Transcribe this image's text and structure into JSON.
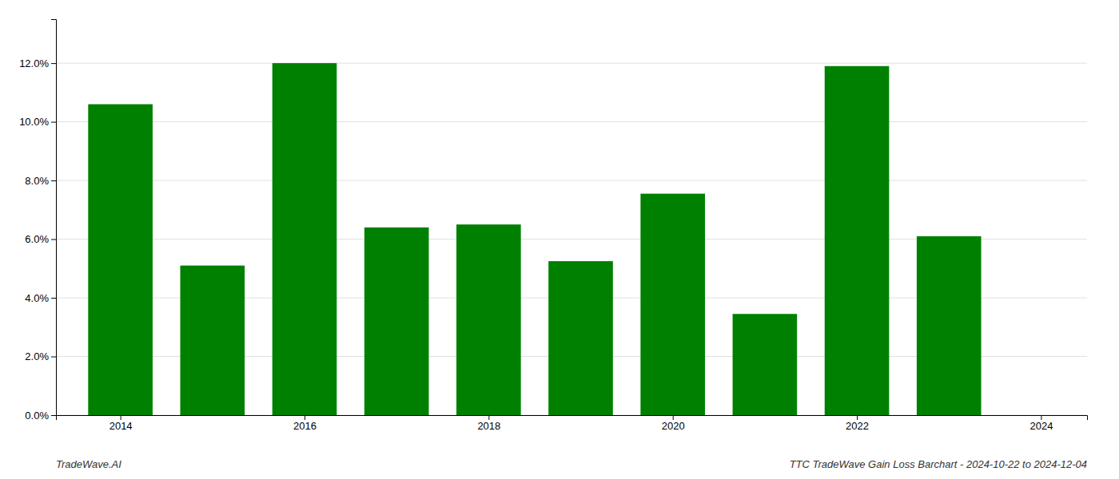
{
  "chart_data": {
    "type": "bar",
    "title": "TTC TradeWave Gain Loss Barchart - 2024-10-22 to 2024-12-04",
    "annotations": [
      "TradeWave.AI"
    ],
    "x": [
      2014,
      2015,
      2016,
      2017,
      2018,
      2019,
      2020,
      2021,
      2022,
      2023
    ],
    "values": [
      0.106,
      0.051,
      0.12,
      0.064,
      0.065,
      0.0525,
      0.0755,
      0.0345,
      0.119,
      0.061
    ],
    "color": "#008000",
    "xlim": [
      2013.3,
      2024.5
    ],
    "xticks": [
      2014,
      2016,
      2018,
      2020,
      2022,
      2024
    ],
    "ylim": [
      0,
      0.135
    ],
    "yticks": [
      {
        "value": 0.0,
        "label": "0.0%"
      },
      {
        "value": 0.02,
        "label": "2.0%"
      },
      {
        "value": 0.04,
        "label": "4.0%"
      },
      {
        "value": 0.06,
        "label": "6.0%"
      },
      {
        "value": 0.08,
        "label": "8.0%"
      },
      {
        "value": 0.1,
        "label": "10.0%"
      },
      {
        "value": 0.12,
        "label": "12.0%"
      }
    ],
    "grid": true
  }
}
